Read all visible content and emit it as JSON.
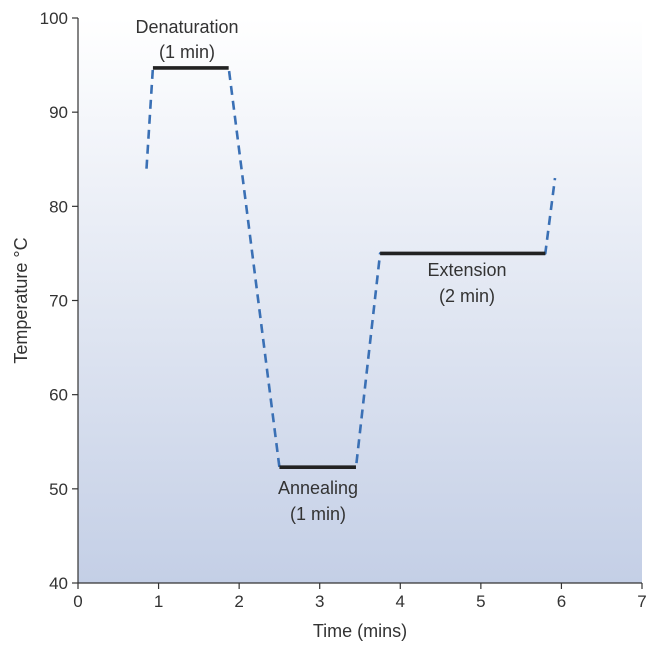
{
  "chart_data": {
    "type": "line",
    "title": "",
    "xlabel": "Time (mins)",
    "ylabel": "Temperature °C",
    "xlim": [
      0,
      7
    ],
    "ylim": [
      40,
      100
    ],
    "xticks": [
      "0",
      "1",
      "2",
      "3",
      "4",
      "5",
      "6",
      "7"
    ],
    "yticks": [
      "40",
      "50",
      "60",
      "70",
      "80",
      "90",
      "100"
    ],
    "grid": false,
    "background": "gradient from white (top) to pale blue (bottom)",
    "series": [
      {
        "style": "dashed",
        "color": "#3a70b5",
        "points": [
          [
            0.85,
            84
          ],
          [
            0.93,
            94.7
          ],
          [
            1.87,
            94.7
          ],
          [
            2.5,
            52.3
          ],
          [
            3.45,
            52.3
          ],
          [
            3.75,
            75
          ],
          [
            5.8,
            75
          ],
          [
            5.92,
            83
          ]
        ]
      }
    ],
    "plateaus": [
      {
        "label_line1": "Denaturation",
        "label_line2": "(1 min)",
        "x_start": 0.93,
        "x_end": 1.87,
        "y": 94.7
      },
      {
        "label_line1": "Annealing",
        "label_line2": "(1 min)",
        "x_start": 2.5,
        "x_end": 3.45,
        "y": 52.3
      },
      {
        "label_line1": "Extension",
        "label_line2": "(2 min)",
        "x_start": 3.75,
        "x_end": 5.8,
        "y": 75
      }
    ],
    "colors": {
      "dashed_line": "#3a70b5",
      "plateau": "#222222",
      "axis": "#333333",
      "bg_top": "#ffffff",
      "bg_bottom": "#c4cfe6"
    }
  }
}
